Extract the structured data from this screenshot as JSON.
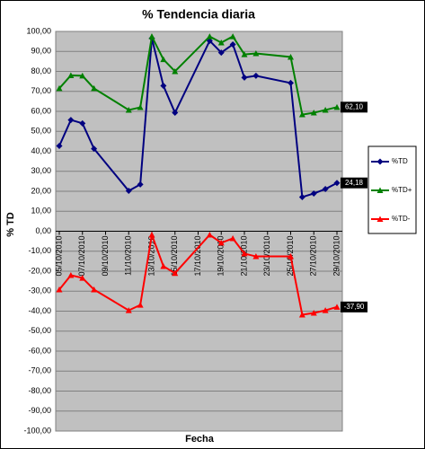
{
  "chart_data": {
    "type": "line",
    "title": "% Tendencia diaria",
    "x_label": "Fecha",
    "y_label": "% TD",
    "x": [
      "05/10/2010",
      "06/10/2010",
      "07/10/2010",
      "08/10/2010",
      "11/10/2010",
      "12/10/2010",
      "13/10/2010",
      "14/10/2010",
      "15/10/2010",
      "18/10/2010",
      "19/10/2010",
      "20/10/2010",
      "21/10/2010",
      "22/10/2010",
      "25/10/2010",
      "26/10/2010",
      "27/10/2010",
      "28/10/2010",
      "29/10/2010"
    ],
    "xticks": [
      "05/10/2010",
      "07/10/2010",
      "09/10/2010",
      "11/10/2010",
      "13/10/2010",
      "15/10/2010",
      "17/10/2010",
      "19/10/2010",
      "21/10/2010",
      "23/10/2010",
      "25/10/2010",
      "27/10/2010",
      "29/10/2010"
    ],
    "ylim": [
      -100,
      100
    ],
    "yticks": [
      {
        "value": -100,
        "label": "-100,00"
      },
      {
        "value": -90,
        "label": "-90,00"
      },
      {
        "value": -80,
        "label": "-80,00"
      },
      {
        "value": -70,
        "label": "-70,00"
      },
      {
        "value": -60,
        "label": "-60,00"
      },
      {
        "value": -50,
        "label": "-50,00"
      },
      {
        "value": -40,
        "label": "-40,00"
      },
      {
        "value": -30,
        "label": "-30,00"
      },
      {
        "value": -20,
        "label": "-20,00"
      },
      {
        "value": -10,
        "label": "-10,00"
      },
      {
        "value": 0,
        "label": "0,00"
      },
      {
        "value": 10,
        "label": "10,00"
      },
      {
        "value": 20,
        "label": "20,00"
      },
      {
        "value": 30,
        "label": "30,00"
      },
      {
        "value": 40,
        "label": "40,00"
      },
      {
        "value": 50,
        "label": "50,00"
      },
      {
        "value": 60,
        "label": "60,00"
      },
      {
        "value": 70,
        "label": "70,00"
      },
      {
        "value": 80,
        "label": "80,00"
      },
      {
        "value": 90,
        "label": "90,00"
      },
      {
        "value": 100,
        "label": "100,00"
      }
    ],
    "grid": true,
    "legend": "right",
    "series": [
      {
        "name": "%TD",
        "color": "#000080",
        "marker": "diamond",
        "values": [
          42.7,
          55.7,
          54,
          41.3,
          20.2,
          23.4,
          96.6,
          72.8,
          59.3,
          95.3,
          89.4,
          93.5,
          76.9,
          77.8,
          74.2,
          17.1,
          18.9,
          21.1,
          24.18
        ],
        "value_labels": [
          null,
          null,
          null,
          null,
          null,
          null,
          null,
          null,
          null,
          null,
          null,
          null,
          null,
          null,
          null,
          null,
          null,
          null,
          "24,18"
        ]
      },
      {
        "name": "%TD+",
        "color": "#008000",
        "marker": "triangle",
        "values": [
          71.5,
          78,
          77.8,
          71.5,
          60.7,
          62,
          97.5,
          86,
          80,
          97.5,
          94.4,
          97.5,
          88.5,
          89,
          87.2,
          58.4,
          59.3,
          60.7,
          62.1
        ],
        "value_labels": [
          null,
          null,
          null,
          null,
          null,
          null,
          null,
          null,
          null,
          null,
          null,
          null,
          null,
          null,
          null,
          null,
          null,
          null,
          "62,10"
        ]
      },
      {
        "name": "%TD-",
        "color": "#ff0000",
        "marker": "triangle",
        "values": [
          -29.2,
          -22,
          -23.4,
          -29.2,
          -39.6,
          -36.9,
          -1.8,
          -17.5,
          -21,
          -1.8,
          -5.8,
          -3.6,
          -11.2,
          -12.6,
          -12.6,
          -41.8,
          -40.9,
          -39.6,
          -37.9
        ],
        "value_labels": [
          null,
          null,
          null,
          null,
          null,
          null,
          null,
          null,
          null,
          null,
          null,
          null,
          null,
          null,
          null,
          null,
          null,
          null,
          "-37,90"
        ]
      }
    ]
  }
}
